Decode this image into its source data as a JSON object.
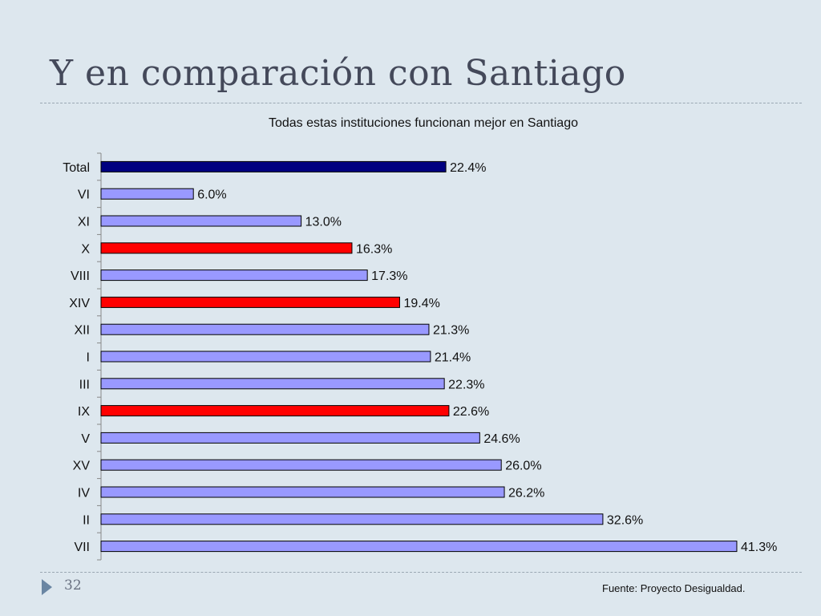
{
  "slide": {
    "title": "Y en comparación con Santiago",
    "number": "32",
    "source": "Fuente: Proyecto Desigualdad."
  },
  "colors": {
    "background": "#dde7ee",
    "total": "#000080",
    "default": "#9999ff",
    "highlight": "#ff0000"
  },
  "chart_data": {
    "type": "bar",
    "orientation": "horizontal",
    "title": "Todas estas instituciones funcionan mejor en Santiago",
    "xlabel": "",
    "ylabel": "",
    "xlim": [
      0,
      42
    ],
    "grid": false,
    "legend": "none",
    "categories": [
      "Total",
      "VI",
      "XI",
      "X",
      "VIII",
      "XIV",
      "XII",
      "I",
      "III",
      "IX",
      "V",
      "XV",
      "IV",
      "II",
      "VII"
    ],
    "values": [
      22.4,
      6.0,
      13.0,
      16.3,
      17.3,
      19.4,
      21.3,
      21.4,
      22.3,
      22.6,
      24.6,
      26.0,
      26.2,
      32.6,
      41.3
    ],
    "labels": [
      "22.4%",
      "6.0%",
      "13.0%",
      "16.3%",
      "17.3%",
      "19.4%",
      "21.3%",
      "21.4%",
      "22.3%",
      "22.6%",
      "24.6%",
      "26.0%",
      "26.2%",
      "32.6%",
      "41.3%"
    ],
    "bar_colors": [
      "#000080",
      "#9999ff",
      "#9999ff",
      "#ff0000",
      "#9999ff",
      "#ff0000",
      "#9999ff",
      "#9999ff",
      "#9999ff",
      "#ff0000",
      "#9999ff",
      "#9999ff",
      "#9999ff",
      "#9999ff",
      "#9999ff"
    ]
  }
}
